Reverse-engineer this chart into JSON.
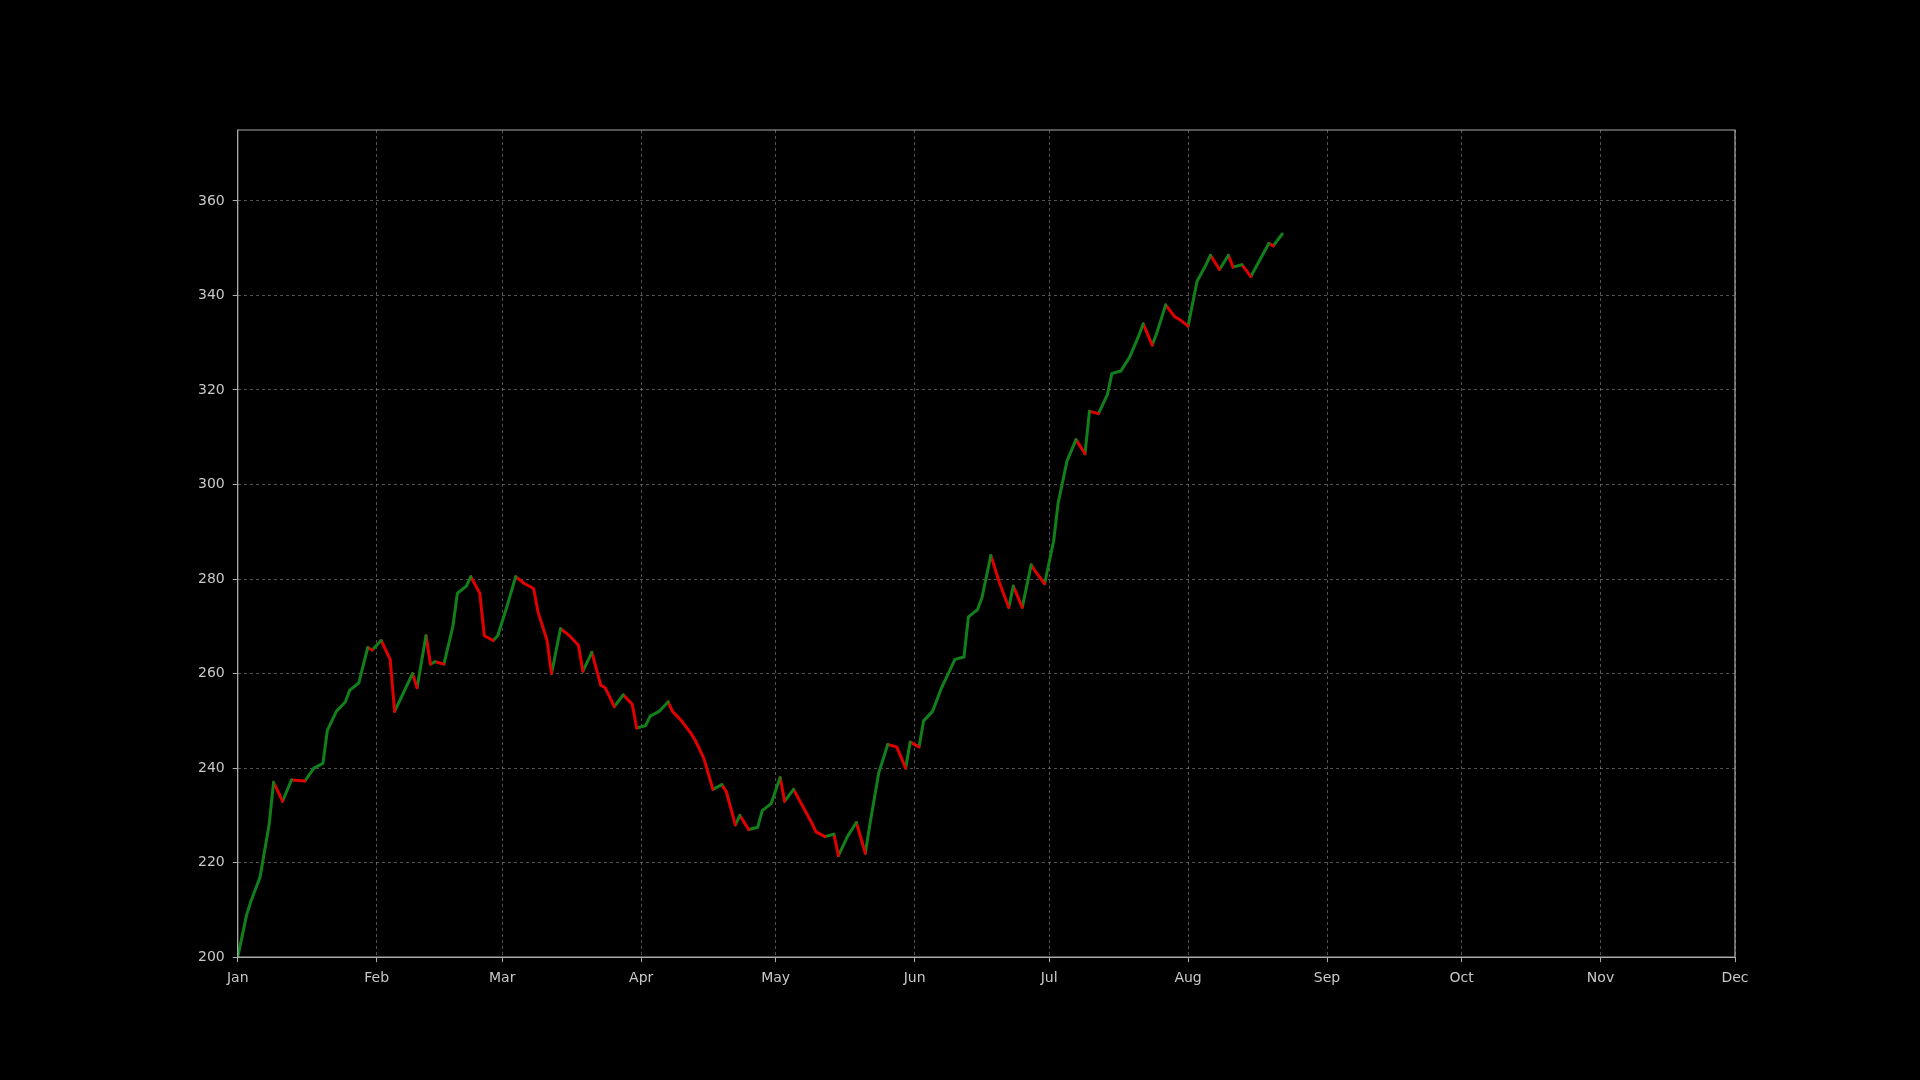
{
  "chart_data": {
    "type": "line",
    "series": [
      {
        "color": "#12801a",
        "x": [
          "--01-01",
          "--01-03",
          "--01-04",
          "--01-06",
          "--01-08",
          "--01-09"
        ],
        "values": [
          200,
          209,
          212,
          217,
          228,
          237
        ]
      },
      {
        "color": "#e00000",
        "x": [
          "--01-09",
          "--01-11"
        ],
        "values": [
          237,
          233
        ]
      },
      {
        "color": "#12801a",
        "x": [
          "--01-11",
          "--01-13"
        ],
        "values": [
          233,
          237.5
        ]
      },
      {
        "color": "#e00000",
        "x": [
          "--01-13",
          "--01-16"
        ],
        "values": [
          237.5,
          237.3
        ]
      },
      {
        "color": "#12801a",
        "x": [
          "--01-16",
          "--01-18",
          "--01-20",
          "--01-21",
          "--01-23",
          "--01-25",
          "--01-26",
          "--01-28",
          "--01-30"
        ],
        "values": [
          237.3,
          240,
          241,
          248,
          252,
          254,
          256.5,
          258,
          265.5
        ]
      },
      {
        "color": "#e00000",
        "x": [
          "--01-30",
          "--01-31"
        ],
        "values": [
          265.5,
          265
        ]
      },
      {
        "color": "#12801a",
        "x": [
          "--01-31",
          "--02-02"
        ],
        "values": [
          265,
          267
        ]
      },
      {
        "color": "#e00000",
        "x": [
          "--02-02",
          "--02-04",
          "--02-05"
        ],
        "values": [
          267,
          263,
          252
        ]
      },
      {
        "color": "#12801a",
        "x": [
          "--02-05",
          "--02-07",
          "--02-09"
        ],
        "values": [
          252,
          256,
          260
        ]
      },
      {
        "color": "#e00000",
        "x": [
          "--02-09",
          "--02-10"
        ],
        "values": [
          260,
          257
        ]
      },
      {
        "color": "#12801a",
        "x": [
          "--02-10",
          "--02-12"
        ],
        "values": [
          257,
          268
        ]
      },
      {
        "color": "#e00000",
        "x": [
          "--02-12",
          "--02-13"
        ],
        "values": [
          268,
          262
        ]
      },
      {
        "color": "#12801a",
        "x": [
          "--02-13",
          "--02-14"
        ],
        "values": [
          262,
          262.5
        ]
      },
      {
        "color": "#e00000",
        "x": [
          "--02-14",
          "--02-16"
        ],
        "values": [
          262.5,
          262
        ]
      },
      {
        "color": "#12801a",
        "x": [
          "--02-16",
          "--02-18",
          "--02-19",
          "--02-21",
          "--02-22"
        ],
        "values": [
          262,
          270,
          277,
          278.5,
          280.5
        ]
      },
      {
        "color": "#e00000",
        "x": [
          "--02-22",
          "--02-24",
          "--02-25",
          "--02-27"
        ],
        "values": [
          280.5,
          277,
          268,
          267
        ]
      },
      {
        "color": "#12801a",
        "x": [
          "--02-27",
          "--02-28",
          "--03-02",
          "--03-04"
        ],
        "values": [
          267,
          268,
          274,
          280.5
        ]
      },
      {
        "color": "#e00000",
        "x": [
          "--03-04",
          "--03-06",
          "--03-08",
          "--03-09",
          "--03-11",
          "--03-12"
        ],
        "values": [
          280.5,
          279,
          278,
          273,
          267,
          260
        ]
      },
      {
        "color": "#12801a",
        "x": [
          "--03-12",
          "--03-14"
        ],
        "values": [
          260,
          269.5
        ]
      },
      {
        "color": "#e00000",
        "x": [
          "--03-14",
          "--03-16",
          "--03-18",
          "--03-19"
        ],
        "values": [
          269.5,
          268,
          266,
          260.5
        ]
      },
      {
        "color": "#12801a",
        "x": [
          "--03-19",
          "--03-21"
        ],
        "values": [
          260.5,
          264.5
        ]
      },
      {
        "color": "#e00000",
        "x": [
          "--03-21",
          "--03-23",
          "--03-24",
          "--03-26"
        ],
        "values": [
          264.5,
          257.5,
          257,
          253
        ]
      },
      {
        "color": "#12801a",
        "x": [
          "--03-26",
          "--03-28"
        ],
        "values": [
          253,
          255.5
        ]
      },
      {
        "color": "#e00000",
        "x": [
          "--03-28",
          "--03-30",
          "--03-31"
        ],
        "values": [
          255.5,
          253.5,
          248.5
        ]
      },
      {
        "color": "#12801a",
        "x": [
          "--03-31",
          "--04-02",
          "--04-03",
          "--04-05",
          "--04-07"
        ],
        "values": [
          248.5,
          249,
          251,
          252,
          254
        ]
      },
      {
        "color": "#e00000",
        "x": [
          "--04-07",
          "--04-08",
          "--04-10",
          "--04-12",
          "--04-13",
          "--04-15",
          "--04-17"
        ],
        "values": [
          254,
          252,
          250,
          247.5,
          246,
          242,
          235.5
        ]
      },
      {
        "color": "#12801a",
        "x": [
          "--04-17",
          "--04-19"
        ],
        "values": [
          235.5,
          236.5
        ]
      },
      {
        "color": "#e00000",
        "x": [
          "--04-19",
          "--04-20",
          "--04-22"
        ],
        "values": [
          236.5,
          235,
          228
        ]
      },
      {
        "color": "#12801a",
        "x": [
          "--04-22",
          "--04-23"
        ],
        "values": [
          228,
          230
        ]
      },
      {
        "color": "#e00000",
        "x": [
          "--04-23",
          "--04-25"
        ],
        "values": [
          230,
          227
        ]
      },
      {
        "color": "#12801a",
        "x": [
          "--04-25",
          "--04-27",
          "--04-28",
          "--04-30",
          "--05-02"
        ],
        "values": [
          227,
          227.5,
          231,
          232.5,
          238
        ]
      },
      {
        "color": "#e00000",
        "x": [
          "--05-02",
          "--05-03"
        ],
        "values": [
          238,
          233
        ]
      },
      {
        "color": "#12801a",
        "x": [
          "--05-03",
          "--05-05"
        ],
        "values": [
          233,
          235.5
        ]
      },
      {
        "color": "#e00000",
        "x": [
          "--05-05",
          "--05-07",
          "--05-09",
          "--05-10",
          "--05-12"
        ],
        "values": [
          235.5,
          232,
          228.5,
          226.5,
          225.5
        ]
      },
      {
        "color": "#12801a",
        "x": [
          "--05-12",
          "--05-14"
        ],
        "values": [
          225.5,
          226
        ]
      },
      {
        "color": "#e00000",
        "x": [
          "--05-14",
          "--05-15"
        ],
        "values": [
          226,
          221.5
        ]
      },
      {
        "color": "#12801a",
        "x": [
          "--05-15",
          "--05-17",
          "--05-19"
        ],
        "values": [
          221.5,
          225.5,
          228.5
        ]
      },
      {
        "color": "#e00000",
        "x": [
          "--05-19",
          "--05-21"
        ],
        "values": [
          228.5,
          222
        ]
      },
      {
        "color": "#12801a",
        "x": [
          "--05-21",
          "--05-22",
          "--05-24",
          "--05-26"
        ],
        "values": [
          222,
          228,
          239,
          245
        ]
      },
      {
        "color": "#e00000",
        "x": [
          "--05-26",
          "--05-28",
          "--05-30"
        ],
        "values": [
          245,
          244.5,
          240
        ]
      },
      {
        "color": "#12801a",
        "x": [
          "--05-30",
          "--05-31"
        ],
        "values": [
          240,
          245.5
        ]
      },
      {
        "color": "#e00000",
        "x": [
          "--05-31",
          "--06-02"
        ],
        "values": [
          245.5,
          244.5
        ]
      },
      {
        "color": "#12801a",
        "x": [
          "--06-02",
          "--06-03",
          "--06-05",
          "--06-07",
          "--06-08",
          "--06-10",
          "--06-12",
          "--06-13",
          "--06-15",
          "--06-16",
          "--06-18"
        ],
        "values": [
          244.5,
          250,
          252,
          257,
          259,
          263,
          263.5,
          272,
          273.5,
          276,
          285
        ]
      },
      {
        "color": "#e00000",
        "x": [
          "--06-18",
          "--06-20",
          "--06-22"
        ],
        "values": [
          285,
          279,
          274
        ]
      },
      {
        "color": "#12801a",
        "x": [
          "--06-22",
          "--06-23"
        ],
        "values": [
          274,
          278.5
        ]
      },
      {
        "color": "#e00000",
        "x": [
          "--06-23",
          "--06-25"
        ],
        "values": [
          278.5,
          274
        ]
      },
      {
        "color": "#12801a",
        "x": [
          "--06-25",
          "--06-27"
        ],
        "values": [
          274,
          283
        ]
      },
      {
        "color": "#e00000",
        "x": [
          "--06-27",
          "--06-28",
          "--06-30"
        ],
        "values": [
          283,
          281.5,
          279
        ]
      },
      {
        "color": "#12801a",
        "x": [
          "--06-30",
          "--07-02",
          "--07-03",
          "--07-05",
          "--07-07"
        ],
        "values": [
          279,
          288,
          296,
          305,
          309.5
        ]
      },
      {
        "color": "#e00000",
        "x": [
          "--07-07",
          "--07-09"
        ],
        "values": [
          309.5,
          306.5
        ]
      },
      {
        "color": "#12801a",
        "x": [
          "--07-09",
          "--07-10"
        ],
        "values": [
          306.5,
          315.5
        ]
      },
      {
        "color": "#e00000",
        "x": [
          "--07-10",
          "--07-12"
        ],
        "values": [
          315.5,
          315
        ]
      },
      {
        "color": "#12801a",
        "x": [
          "--07-12",
          "--07-14",
          "--07-15",
          "--07-17",
          "--07-19",
          "--07-21",
          "--07-22"
        ],
        "values": [
          315,
          319,
          323.5,
          324,
          327,
          331.5,
          334
        ]
      },
      {
        "color": "#e00000",
        "x": [
          "--07-22",
          "--07-24"
        ],
        "values": [
          334,
          329.5
        ]
      },
      {
        "color": "#12801a",
        "x": [
          "--07-24",
          "--07-25",
          "--07-27"
        ],
        "values": [
          329.5,
          332,
          338
        ]
      },
      {
        "color": "#e00000",
        "x": [
          "--07-27",
          "--07-29",
          "--07-30",
          "--08-01"
        ],
        "values": [
          338,
          335.5,
          335,
          333.5
        ]
      },
      {
        "color": "#12801a",
        "x": [
          "--08-01",
          "--08-03",
          "--08-05",
          "--08-06"
        ],
        "values": [
          333.5,
          343,
          346.5,
          348.5
        ]
      },
      {
        "color": "#e00000",
        "x": [
          "--08-06",
          "--08-08"
        ],
        "values": [
          348.5,
          345.5
        ]
      },
      {
        "color": "#12801a",
        "x": [
          "--08-08",
          "--08-10"
        ],
        "values": [
          345.5,
          348.5
        ]
      },
      {
        "color": "#e00000",
        "x": [
          "--08-10",
          "--08-11"
        ],
        "values": [
          348.5,
          346
        ]
      },
      {
        "color": "#12801a",
        "x": [
          "--08-11",
          "--08-13"
        ],
        "values": [
          346,
          346.5
        ]
      },
      {
        "color": "#e00000",
        "x": [
          "--08-13",
          "--08-15"
        ],
        "values": [
          346.5,
          344
        ]
      },
      {
        "color": "#12801a",
        "x": [
          "--08-15",
          "--08-17",
          "--08-19"
        ],
        "values": [
          344,
          347.5,
          351
        ]
      },
      {
        "color": "#e00000",
        "x": [
          "--08-19",
          "--08-20"
        ],
        "values": [
          351,
          350.5
        ]
      },
      {
        "color": "#12801a",
        "x": [
          "--08-20",
          "--08-22"
        ],
        "values": [
          350.5,
          353
        ]
      }
    ],
    "xlim": [
      "--01-01",
      "--12-01"
    ],
    "xticks": [
      {
        "value": "--01-01",
        "label": "Jan"
      },
      {
        "value": "--02-01",
        "label": "Feb"
      },
      {
        "value": "--03-01",
        "label": "Mar"
      },
      {
        "value": "--04-01",
        "label": "Apr"
      },
      {
        "value": "--05-01",
        "label": "May"
      },
      {
        "value": "--06-01",
        "label": "Jun"
      },
      {
        "value": "--07-01",
        "label": "Jul"
      },
      {
        "value": "--08-01",
        "label": "Aug"
      },
      {
        "value": "--09-01",
        "label": "Sep"
      },
      {
        "value": "--10-01",
        "label": "Oct"
      },
      {
        "value": "--11-01",
        "label": "Nov"
      },
      {
        "value": "--12-01",
        "label": "Dec"
      }
    ],
    "ylim": [
      200,
      375
    ],
    "yticks": [
      200,
      220,
      240,
      260,
      280,
      300,
      320,
      340,
      360
    ],
    "grid": true
  }
}
